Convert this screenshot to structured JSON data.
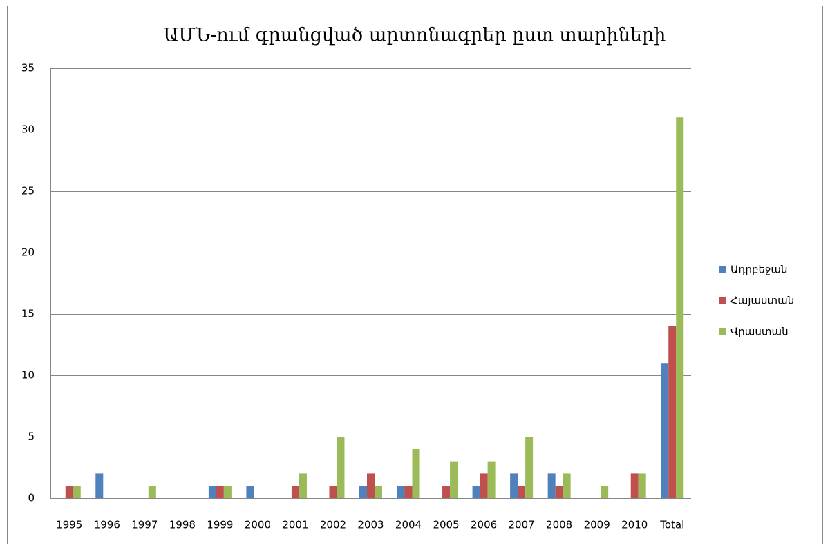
{
  "chart_data": {
    "type": "bar",
    "title": "ԱՄՆ-ում գրանցված արտոնագրեր ըստ տարիների",
    "categories": [
      "1995",
      "1996",
      "1997",
      "1998",
      "1999",
      "2000",
      "2001",
      "2002",
      "2003",
      "2004",
      "2005",
      "2006",
      "2007",
      "2008",
      "2009",
      "2010",
      "Total"
    ],
    "series": [
      {
        "name": "Ադրբեջան",
        "color": "#4f81bd",
        "values": [
          0,
          2,
          0,
          0,
          1,
          1,
          0,
          0,
          1,
          1,
          0,
          1,
          2,
          2,
          0,
          0,
          11
        ]
      },
      {
        "name": "Հայաստան",
        "color": "#c0504d",
        "values": [
          1,
          0,
          0,
          0,
          1,
          0,
          1,
          1,
          2,
          1,
          1,
          2,
          1,
          1,
          0,
          2,
          14
        ]
      },
      {
        "name": "Վրաստան",
        "color": "#9bbb59",
        "values": [
          1,
          0,
          1,
          0,
          1,
          0,
          2,
          5,
          1,
          4,
          3,
          3,
          5,
          2,
          1,
          2,
          31
        ]
      }
    ],
    "ylim": [
      0,
      35
    ],
    "yticks": [
      0,
      5,
      10,
      15,
      20,
      25,
      30,
      35
    ],
    "grid": true,
    "legend": "right"
  }
}
